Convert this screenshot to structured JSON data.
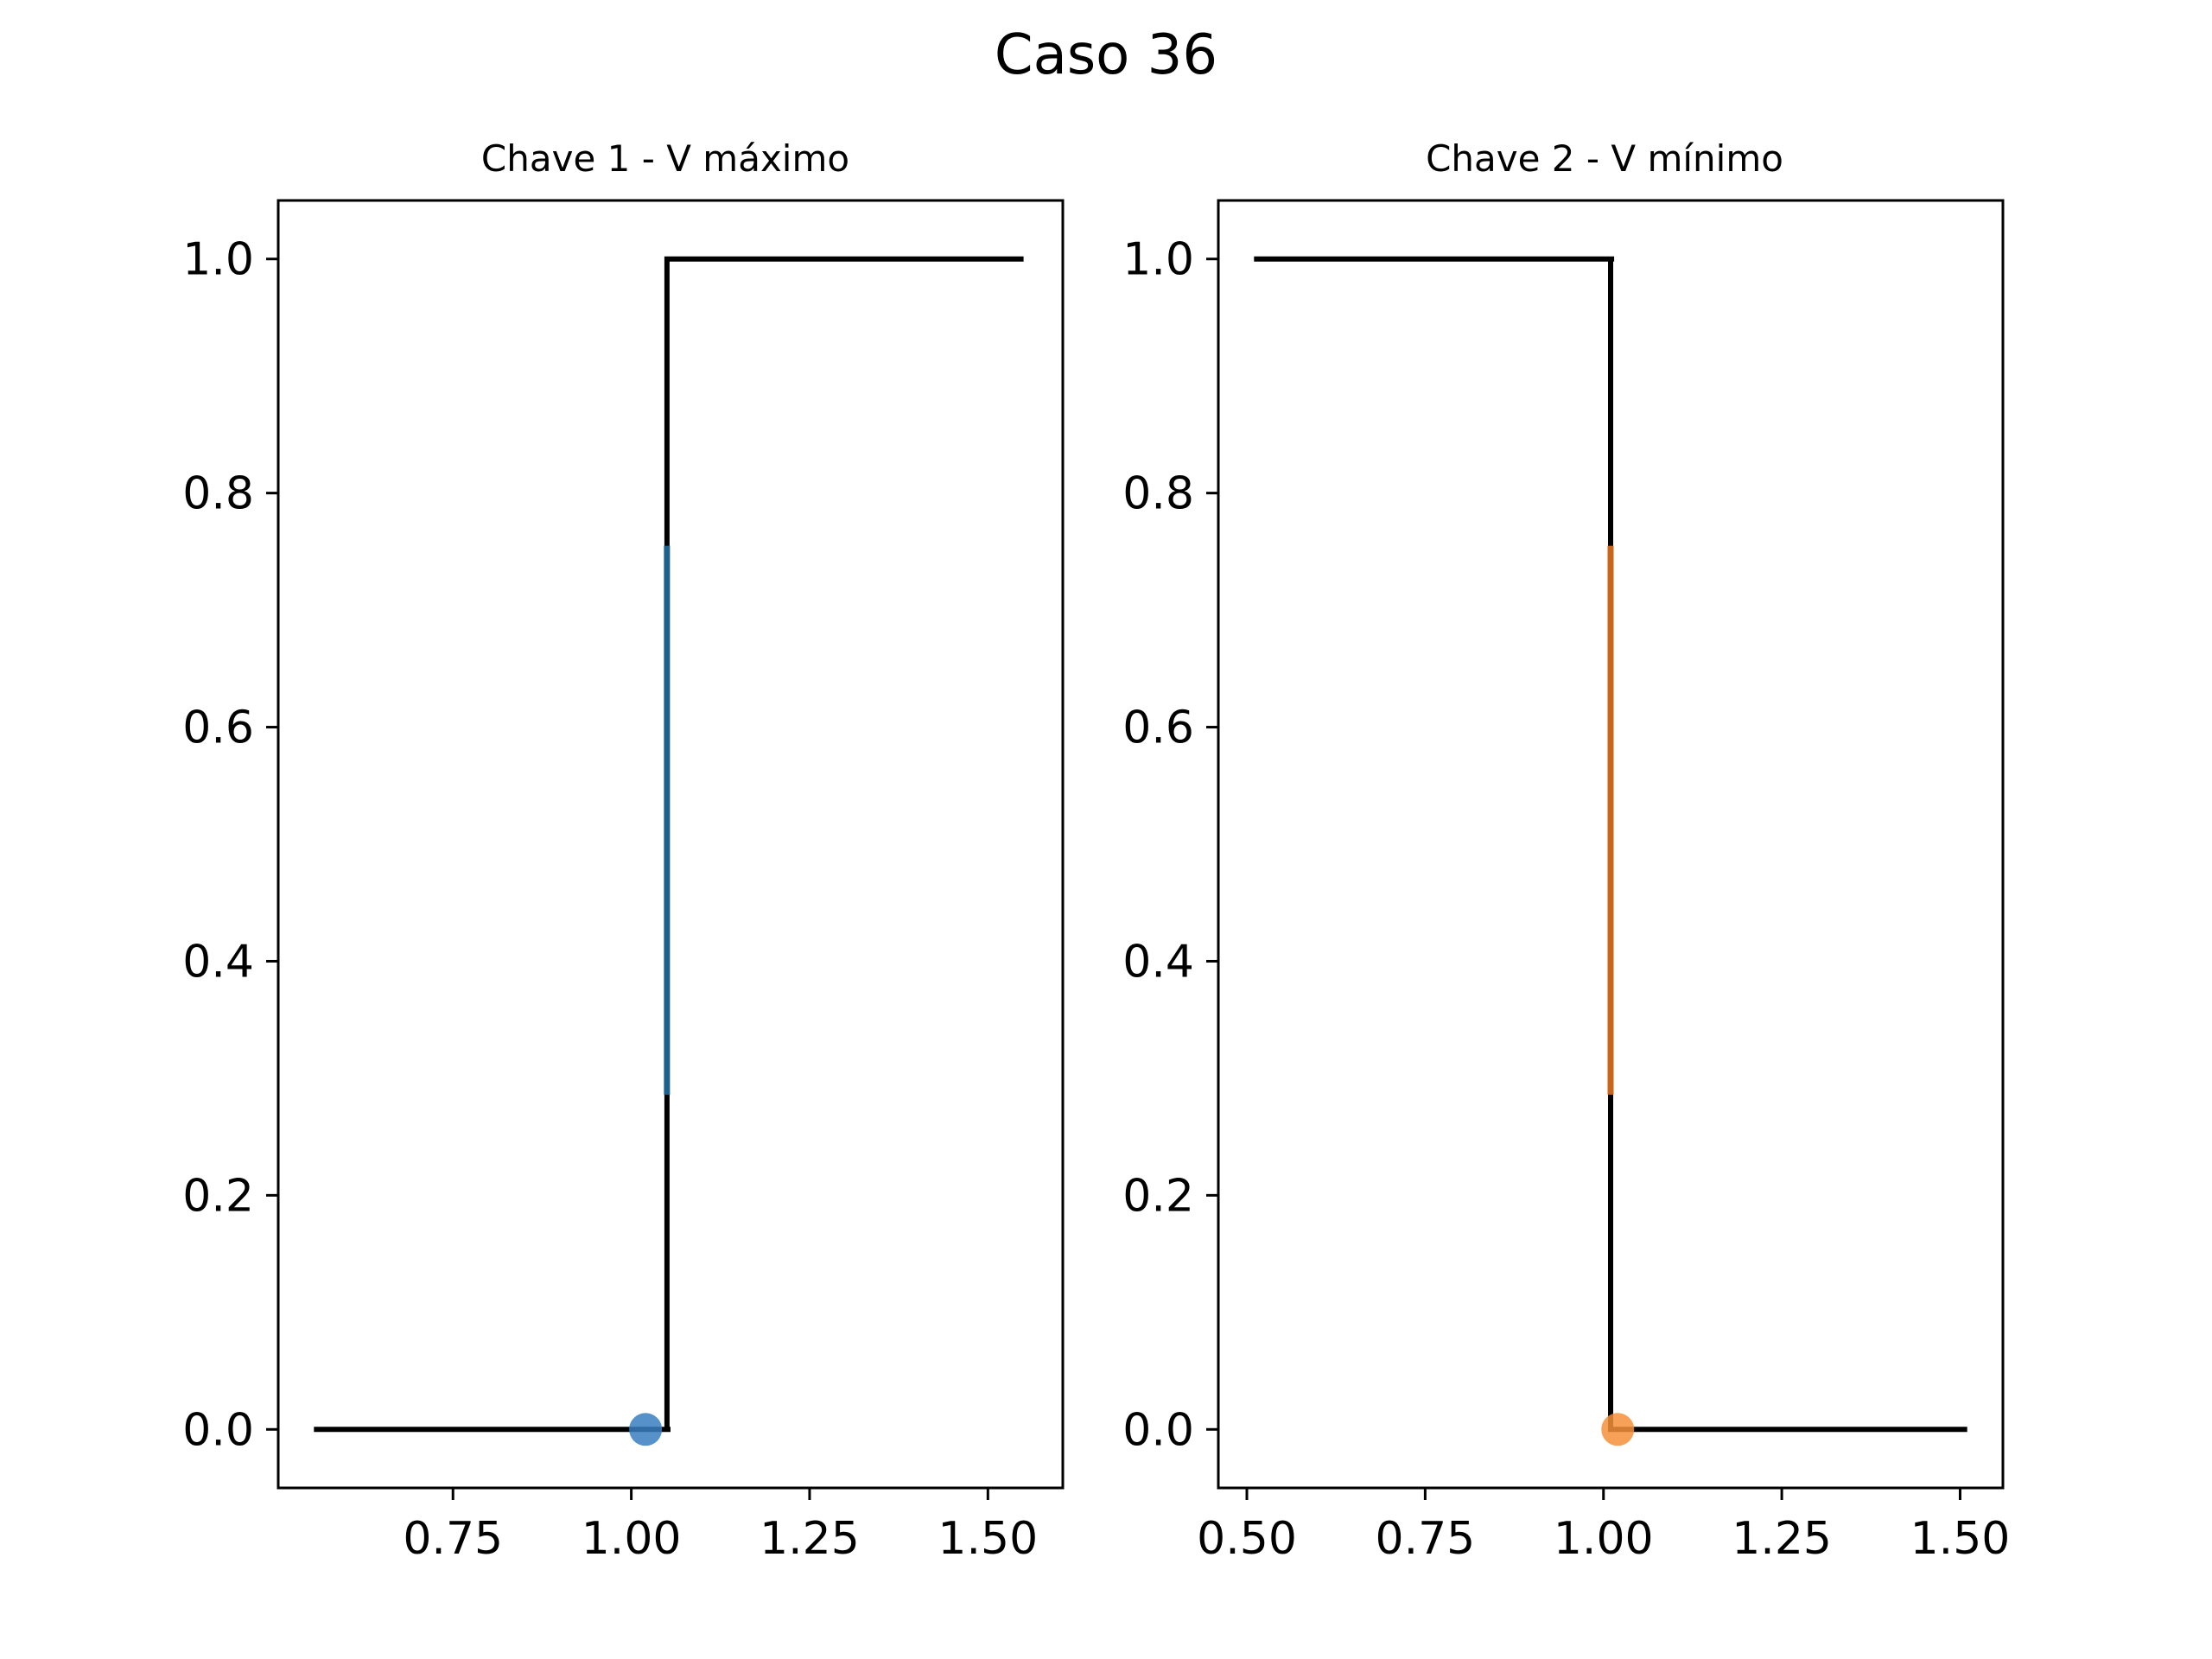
{
  "figure": {
    "suptitle": "Caso 36"
  },
  "chart_data": [
    {
      "type": "line",
      "title": "Chave 1 - V máximo",
      "xlabel": "",
      "ylabel": "",
      "xlim": [
        0.505,
        1.605
      ],
      "ylim": [
        -0.05,
        1.05
      ],
      "x_ticks": [
        0.75,
        1.0,
        1.25,
        1.5
      ],
      "x_tick_labels": [
        "0.75",
        "1.00",
        "1.25",
        "1.50"
      ],
      "y_ticks": [
        0.0,
        0.2,
        0.4,
        0.6,
        0.8,
        1.0
      ],
      "y_tick_labels": [
        "0.0",
        "0.2",
        "0.4",
        "0.6",
        "0.8",
        "1.0"
      ],
      "grid": false,
      "step_line": {
        "color": "#000000",
        "points": [
          [
            0.555,
            0.0
          ],
          [
            1.055,
            0.0
          ],
          [
            1.05,
            0.0
          ],
          [
            1.05,
            1.0
          ],
          [
            1.05,
            1.0
          ],
          [
            1.55,
            1.0
          ]
        ]
      },
      "highlight_segment": {
        "x": 1.05,
        "y_range": [
          0.286,
          0.755
        ],
        "color": "#1f5f8b"
      },
      "marker": {
        "x": 1.02,
        "y": 0.0,
        "color": "#3a7ebf"
      }
    },
    {
      "type": "line",
      "title": "Chave 2 - V mínimo",
      "xlabel": "",
      "ylabel": "",
      "xlim": [
        0.46,
        1.56
      ],
      "ylim": [
        -0.05,
        1.05
      ],
      "x_ticks": [
        0.5,
        0.75,
        1.0,
        1.25,
        1.5
      ],
      "x_tick_labels": [
        "0.50",
        "0.75",
        "1.00",
        "1.25",
        "1.50"
      ],
      "y_ticks": [
        0.0,
        0.2,
        0.4,
        0.6,
        0.8,
        1.0
      ],
      "y_tick_labels": [
        "0.0",
        "0.2",
        "0.4",
        "0.6",
        "0.8",
        "1.0"
      ],
      "grid": false,
      "step_line": {
        "color": "#000000",
        "points": [
          [
            0.51,
            1.0
          ],
          [
            1.015,
            1.0
          ],
          [
            1.01,
            1.0
          ],
          [
            1.01,
            0.0
          ],
          [
            1.01,
            0.0
          ],
          [
            1.51,
            0.0
          ]
        ]
      },
      "highlight_segment": {
        "x": 1.01,
        "y_range": [
          0.286,
          0.755
        ],
        "color": "#c8651b"
      },
      "marker": {
        "x": 1.02,
        "y": 0.0,
        "color": "#f5903a"
      }
    }
  ]
}
